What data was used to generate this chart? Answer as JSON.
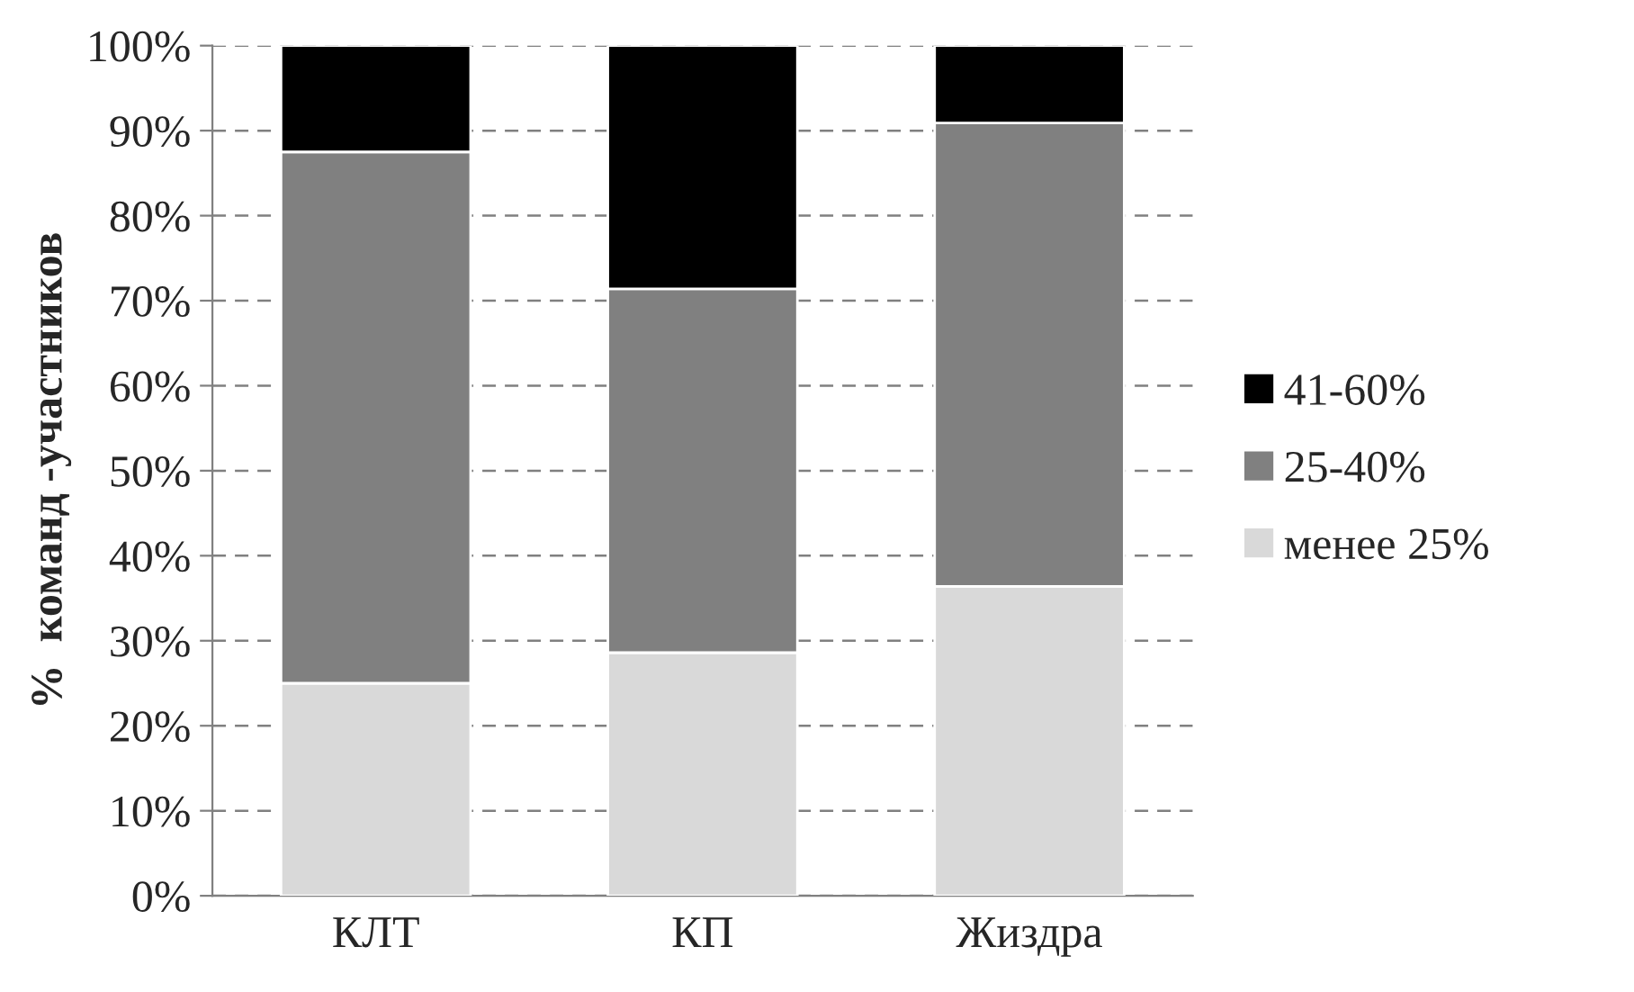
{
  "chart_data": {
    "type": "bar",
    "stacked": true,
    "ylabel": "%  команд -участников",
    "categories": [
      "КЛТ",
      "КП",
      "Жиздра"
    ],
    "series": [
      {
        "name": "менее 25%",
        "color": "#d9d9d9",
        "values": [
          25,
          28.6,
          36.4
        ]
      },
      {
        "name": "25-40%",
        "color": "#808080",
        "values": [
          62.5,
          42.8,
          54.5
        ]
      },
      {
        "name": "41-60%",
        "color": "#000000",
        "values": [
          12.5,
          28.6,
          9.1
        ]
      }
    ],
    "ylim": [
      0,
      100
    ],
    "yticks": [
      {
        "value": 0,
        "label": "0%"
      },
      {
        "value": 10,
        "label": "10%"
      },
      {
        "value": 20,
        "label": "20%"
      },
      {
        "value": 30,
        "label": "30%"
      },
      {
        "value": 40,
        "label": "40%"
      },
      {
        "value": 50,
        "label": "50%"
      },
      {
        "value": 60,
        "label": "60%"
      },
      {
        "value": 70,
        "label": "70%"
      },
      {
        "value": 80,
        "label": "80%"
      },
      {
        "value": 90,
        "label": "90%"
      },
      {
        "value": 100,
        "label": "100%"
      }
    ],
    "grid": "y",
    "legend": "right",
    "line_style": "dashed"
  }
}
